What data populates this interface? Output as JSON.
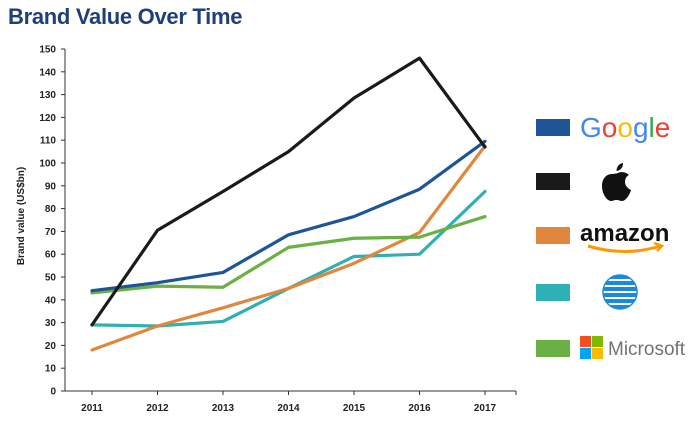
{
  "title": "Brand Value Over Time",
  "chart_data": {
    "type": "line",
    "title": "Brand Value Over Time",
    "xlabel": "",
    "ylabel": "Brand value (US$bn)",
    "ylim": [
      0,
      150
    ],
    "yticks": [
      0,
      10,
      20,
      30,
      40,
      50,
      60,
      70,
      80,
      90,
      100,
      110,
      120,
      130,
      140,
      150
    ],
    "grid": false,
    "legend_position": "right",
    "x": [
      "2011",
      "2012",
      "2013",
      "2014",
      "2015",
      "2016",
      "2017"
    ],
    "series": [
      {
        "name": "Google",
        "color": "#1f5597",
        "values": [
          44,
          47.5,
          52,
          68.5,
          76.5,
          88.5,
          109.5
        ]
      },
      {
        "name": "Apple",
        "color": "#1a1a1a",
        "values": [
          29,
          70.5,
          87.5,
          105,
          128.5,
          146,
          107
        ]
      },
      {
        "name": "amazon",
        "color": "#e0873d",
        "values": [
          18,
          28.5,
          36.5,
          45,
          56,
          69.5,
          107.5
        ]
      },
      {
        "name": "AT&T",
        "color": "#2fb0b4",
        "values": [
          29,
          28.5,
          30.5,
          45,
          59,
          60,
          87.5
        ]
      },
      {
        "name": "Microsoft",
        "color": "#6ab042",
        "values": [
          43,
          46,
          45.5,
          63,
          67,
          67.5,
          76.5
        ]
      }
    ]
  },
  "legend": [
    {
      "logo": "google-logo",
      "label": "Google"
    },
    {
      "logo": "apple-logo",
      "label": ""
    },
    {
      "logo": "amazon-logo",
      "label": "amazon"
    },
    {
      "logo": "att-logo",
      "label": ""
    },
    {
      "logo": "microsoft-logo",
      "label": "Microsoft"
    }
  ]
}
